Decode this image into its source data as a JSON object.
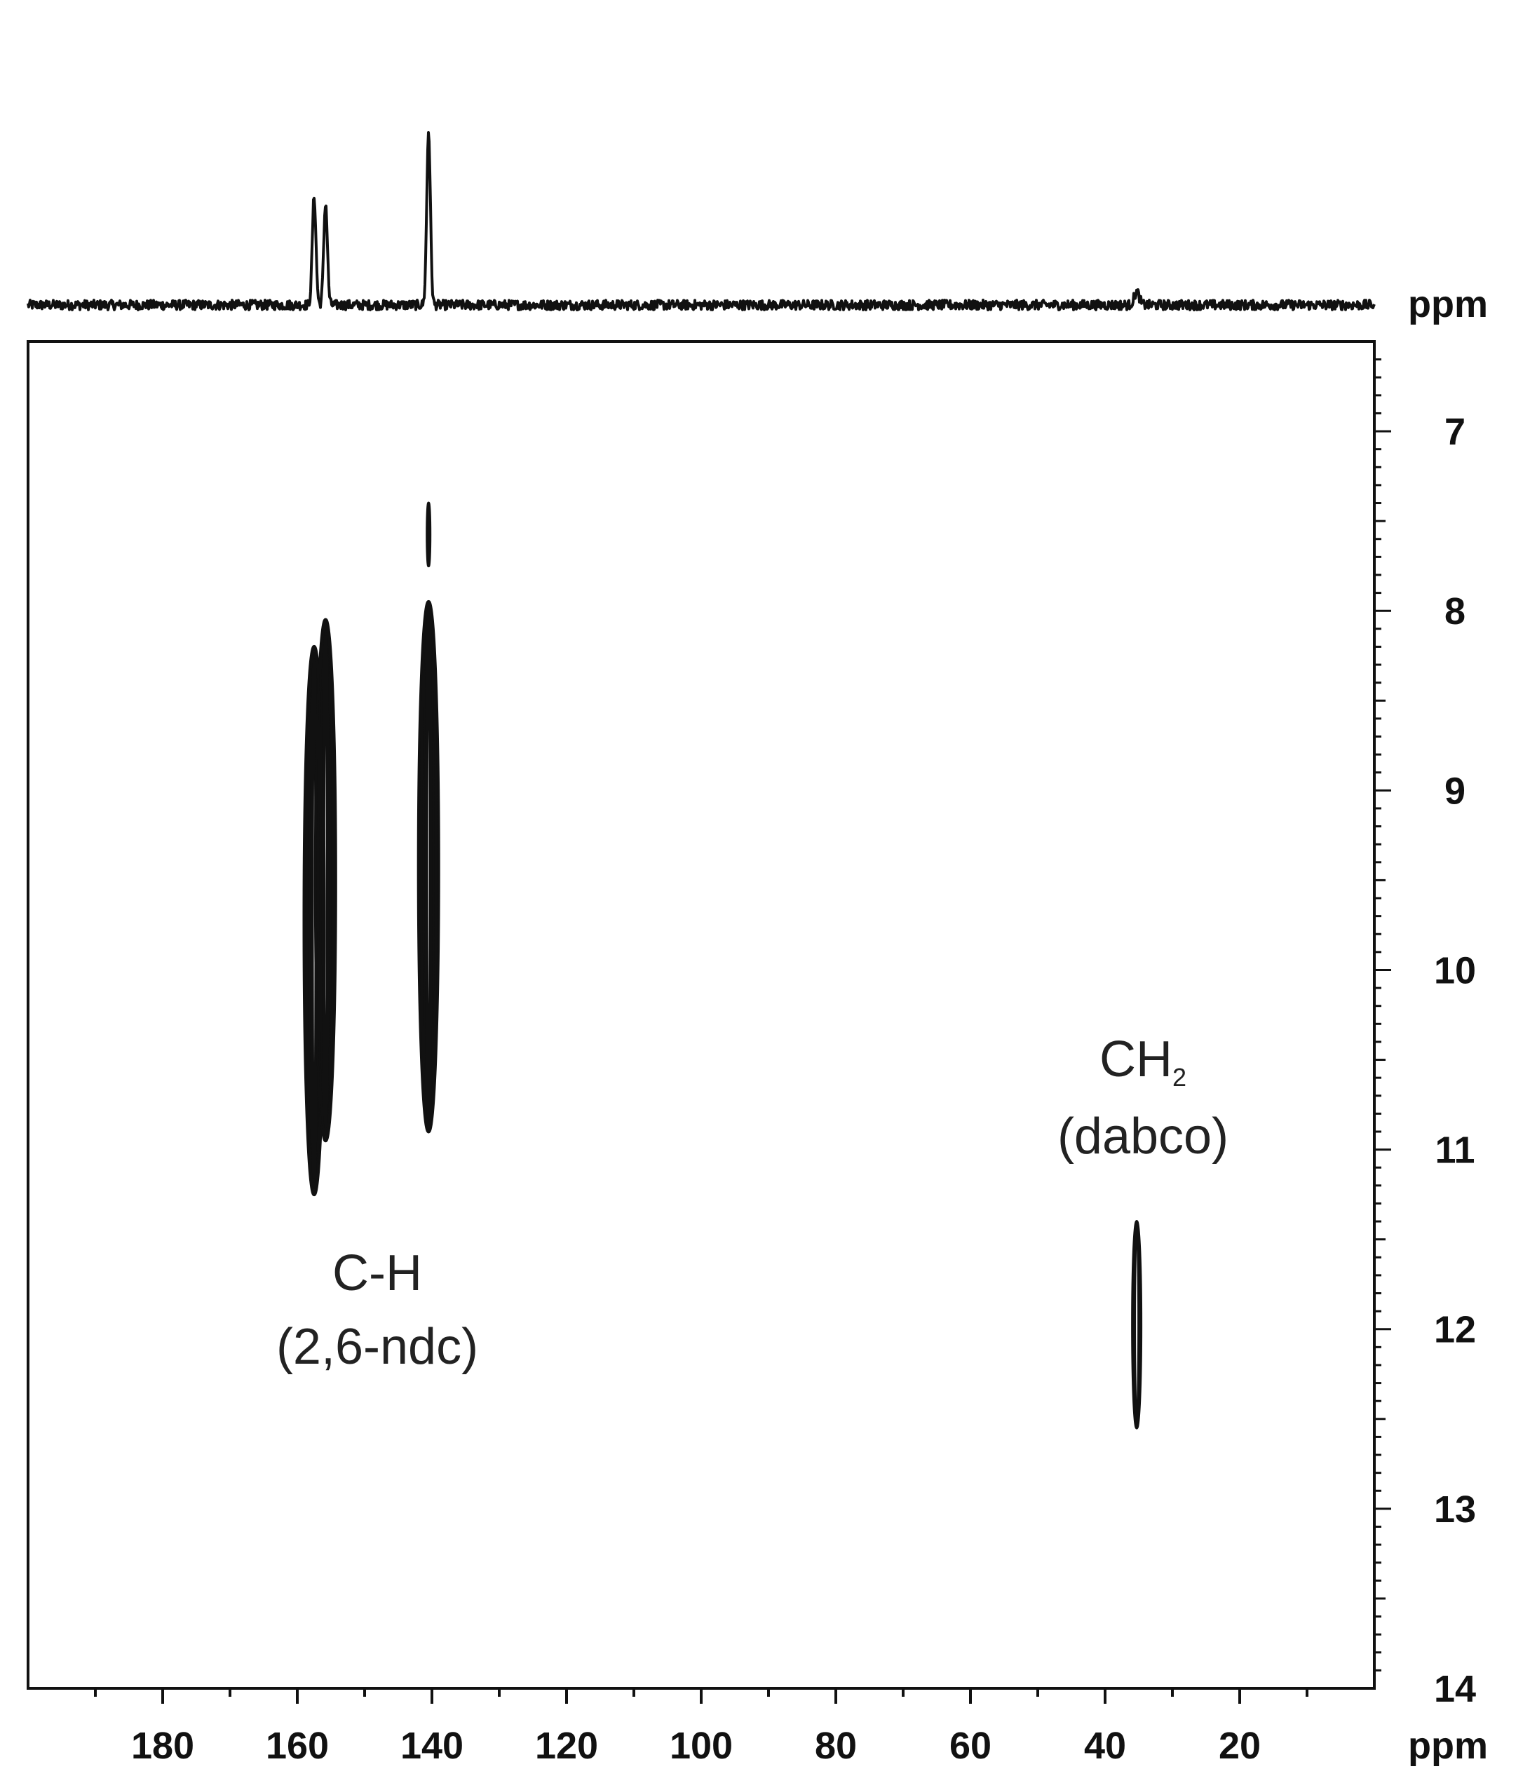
{
  "chart_data": {
    "type": "heatmap",
    "subtype": "2D NMR contour spectrum with 1D projection",
    "title": "",
    "x_axis": {
      "label": "ppm",
      "range": [
        200,
        0
      ],
      "reversed": true,
      "major_ticks": [
        180,
        160,
        140,
        120,
        100,
        80,
        60,
        40,
        20
      ],
      "minor_step": 10
    },
    "y_axis": {
      "label": "",
      "range": [
        6.5,
        14
      ],
      "position": "right",
      "major_ticks": [
        7,
        8,
        9,
        10,
        11,
        12,
        13,
        14
      ],
      "minor_step": 0.1
    },
    "projection": {
      "label": "ppm",
      "peaks": [
        {
          "x": 157.5,
          "height": 1.0
        },
        {
          "x": 155.8,
          "height": 0.94
        },
        {
          "x": 140.5,
          "height": 1.6
        },
        {
          "x": 35.3,
          "height": 0.12
        }
      ]
    },
    "cross_peaks": [
      {
        "x": 157.5,
        "y_top": 8.2,
        "y_bottom": 11.25
      },
      {
        "x": 155.8,
        "y_top": 8.05,
        "y_bottom": 10.95
      },
      {
        "x": 140.5,
        "y_top": 7.95,
        "y_bottom": 10.9
      },
      {
        "x": 140.5,
        "y_top": 7.4,
        "y_bottom": 7.75
      },
      {
        "x": 35.3,
        "y_top": 11.4,
        "y_bottom": 12.55
      }
    ],
    "annotations": [
      {
        "line1": "C-H",
        "line2": "(2,6-ndc)"
      },
      {
        "line1_main": "CH",
        "line1_sub": "2",
        "line2": "(dabco)"
      }
    ],
    "grid": false,
    "legend": "none"
  }
}
